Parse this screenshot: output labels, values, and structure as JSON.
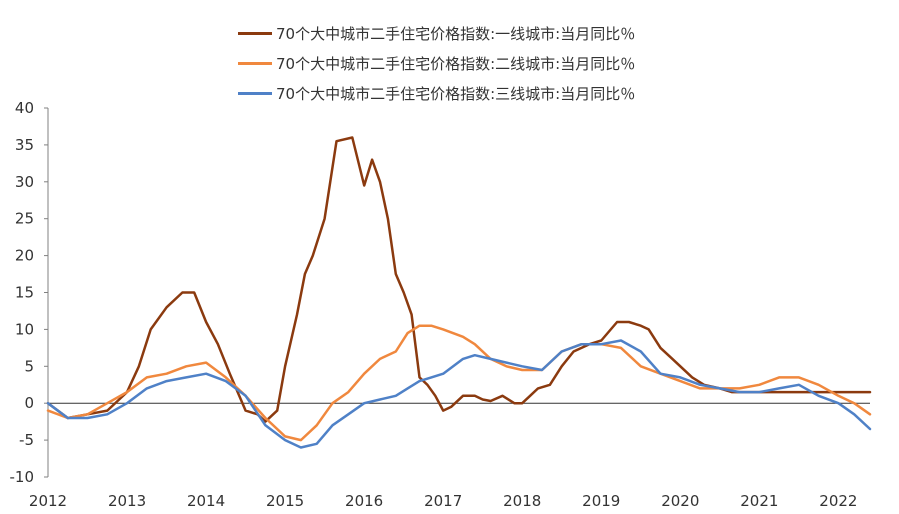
{
  "chart_data": {
    "type": "line",
    "title": "",
    "xlabel": "",
    "ylabel": "",
    "ylim": [
      -10,
      40
    ],
    "y_ticks": [
      -10,
      -5,
      0,
      5,
      10,
      15,
      20,
      25,
      30,
      35,
      40
    ],
    "x_ticks": [
      "2012",
      "2013",
      "2014",
      "2015",
      "2016",
      "2017",
      "2018",
      "2019",
      "2020",
      "2021",
      "2022"
    ],
    "xlim": [
      2012.0,
      2022.4
    ],
    "grid": false,
    "legend_position": "top",
    "series": [
      {
        "name": "70个大中城市二手住宅价格指数:一线城市:当月同比％",
        "color": "#8B3A0F",
        "x": [
          2012.0,
          2012.25,
          2012.5,
          2012.75,
          2013.0,
          2013.15,
          2013.3,
          2013.5,
          2013.7,
          2013.85,
          2014.0,
          2014.15,
          2014.3,
          2014.5,
          2014.65,
          2014.75,
          2014.9,
          2015.0,
          2015.15,
          2015.25,
          2015.35,
          2015.5,
          2015.65,
          2015.85,
          2016.0,
          2016.1,
          2016.2,
          2016.3,
          2016.4,
          2016.5,
          2016.6,
          2016.7,
          2016.8,
          2016.9,
          2017.0,
          2017.1,
          2017.25,
          2017.4,
          2017.5,
          2017.6,
          2017.75,
          2017.9,
          2018.0,
          2018.1,
          2018.2,
          2018.35,
          2018.5,
          2018.65,
          2018.85,
          2019.0,
          2019.2,
          2019.35,
          2019.5,
          2019.6,
          2019.75,
          2019.9,
          2020.0,
          2020.15,
          2020.3,
          2020.5,
          2020.65,
          2020.8,
          2021.0,
          2021.1,
          2021.2,
          2021.35,
          2021.5,
          2021.6,
          2021.7,
          2021.85,
          2022.0,
          2022.1,
          2022.2,
          2022.3,
          2022.4
        ],
        "values": [
          0.0,
          -2.0,
          -1.5,
          -1.0,
          1.5,
          5.0,
          10.0,
          13.0,
          15.0,
          15.0,
          11.0,
          8.0,
          4.0,
          -1.0,
          -1.5,
          -2.5,
          -1.0,
          5.0,
          12.0,
          17.5,
          20.0,
          25.0,
          35.5,
          36.0,
          29.5,
          33.0,
          30.0,
          25.0,
          17.5,
          15.0,
          12.0,
          3.5,
          2.5,
          1.0,
          -1.0,
          -0.5,
          1.0,
          1.0,
          0.5,
          0.3,
          1.0,
          0.0,
          0.0,
          1.0,
          2.0,
          2.5,
          5.0,
          7.0,
          8.0,
          8.5,
          11.0,
          11.0,
          10.5,
          10.0,
          7.5,
          6.0,
          5.0,
          3.5,
          2.5,
          2.0,
          1.5,
          1.5,
          1.5,
          1.5,
          1.5,
          1.5,
          1.5,
          1.5,
          1.5,
          1.5,
          1.5,
          1.5,
          1.5,
          1.5,
          1.5
        ]
      },
      {
        "name": "70个大中城市二手住宅价格指数:二线城市:当月同比％",
        "color": "#F0883E",
        "x": [
          2012.0,
          2012.25,
          2012.5,
          2012.75,
          2013.0,
          2013.25,
          2013.5,
          2013.75,
          2014.0,
          2014.25,
          2014.5,
          2014.75,
          2015.0,
          2015.2,
          2015.4,
          2015.6,
          2015.8,
          2016.0,
          2016.2,
          2016.4,
          2016.55,
          2016.7,
          2016.85,
          2017.0,
          2017.25,
          2017.4,
          2017.6,
          2017.8,
          2018.0,
          2018.25,
          2018.5,
          2018.75,
          2019.0,
          2019.25,
          2019.5,
          2019.75,
          2020.0,
          2020.25,
          2020.5,
          2020.75,
          2021.0,
          2021.25,
          2021.5,
          2021.75,
          2022.0,
          2022.2,
          2022.4
        ],
        "values": [
          -1.0,
          -2.0,
          -1.5,
          0.0,
          1.5,
          3.5,
          4.0,
          5.0,
          5.5,
          3.5,
          1.0,
          -2.0,
          -4.5,
          -5.0,
          -3.0,
          0.0,
          1.5,
          4.0,
          6.0,
          7.0,
          9.5,
          10.5,
          10.5,
          10.0,
          9.0,
          8.0,
          6.0,
          5.0,
          4.5,
          4.5,
          7.0,
          8.0,
          8.0,
          7.5,
          5.0,
          4.0,
          3.0,
          2.0,
          2.0,
          2.0,
          2.5,
          3.5,
          3.5,
          2.5,
          1.0,
          0.0,
          -1.5
        ]
      },
      {
        "name": "70个大中城市二手住宅价格指数:三线城市:当月同比％",
        "color": "#4F81C7",
        "x": [
          2012.0,
          2012.25,
          2012.5,
          2012.75,
          2013.0,
          2013.25,
          2013.5,
          2013.75,
          2014.0,
          2014.25,
          2014.5,
          2014.75,
          2015.0,
          2015.2,
          2015.4,
          2015.6,
          2015.8,
          2016.0,
          2016.2,
          2016.4,
          2016.55,
          2016.7,
          2016.85,
          2017.0,
          2017.25,
          2017.4,
          2017.6,
          2017.8,
          2018.0,
          2018.25,
          2018.5,
          2018.75,
          2019.0,
          2019.25,
          2019.5,
          2019.75,
          2020.0,
          2020.25,
          2020.5,
          2020.75,
          2021.0,
          2021.25,
          2021.5,
          2021.75,
          2022.0,
          2022.2,
          2022.4
        ],
        "values": [
          0.0,
          -2.0,
          -2.0,
          -1.5,
          0.0,
          2.0,
          3.0,
          3.5,
          4.0,
          3.0,
          1.0,
          -3.0,
          -5.0,
          -6.0,
          -5.5,
          -3.0,
          -1.5,
          0.0,
          0.5,
          1.0,
          2.0,
          3.0,
          3.5,
          4.0,
          6.0,
          6.5,
          6.0,
          5.5,
          5.0,
          4.5,
          7.0,
          8.0,
          8.0,
          8.5,
          7.0,
          4.0,
          3.5,
          2.5,
          2.0,
          1.5,
          1.5,
          2.0,
          2.5,
          1.0,
          0.0,
          -1.5,
          -3.5
        ]
      }
    ]
  }
}
